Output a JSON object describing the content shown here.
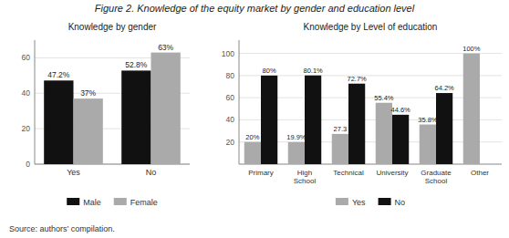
{
  "title": "Figure 2.  Knowledge of the equity market by gender and education level",
  "annotations": [
    "Source: authors’ compilation."
  ],
  "chart_data": [
    {
      "type": "bar",
      "title": "Knowledge by gender",
      "categories": [
        "Yes",
        "No"
      ],
      "series": [
        {
          "name": "Male",
          "color": "#111111",
          "values": [
            47.2,
            52.8
          ],
          "value_labels": [
            "47.2%",
            "52.8%"
          ]
        },
        {
          "name": "Female",
          "color": "#aaaaaa",
          "values": [
            37.0,
            63.0
          ],
          "value_labels": [
            "37%",
            "63%"
          ]
        }
      ],
      "ylim": [
        0,
        70
      ],
      "yticks": [
        0,
        20,
        40,
        60
      ],
      "grid": true,
      "legend": "bottom",
      "data_labels": true
    },
    {
      "type": "bar",
      "title": "Knowledge by Level of education",
      "categories": [
        "Primary",
        "High School",
        "Technical",
        "University",
        "Graduate School",
        "Other"
      ],
      "series": [
        {
          "name": "Yes",
          "color": "#aaaaaa",
          "values": [
            20.0,
            19.9,
            27.3,
            55.4,
            35.8,
            100.0
          ],
          "value_labels": [
            "20%",
            "19.9%",
            "27.3",
            "55.4%",
            "35.8%",
            "100%"
          ]
        },
        {
          "name": "No",
          "color": "#111111",
          "values": [
            80.0,
            80.1,
            72.7,
            44.6,
            64.2,
            0.0
          ],
          "value_labels": [
            "80%",
            "80.1%",
            "72.7%",
            "44.6%",
            "64.2%",
            null
          ]
        }
      ],
      "ylim": [
        0,
        112
      ],
      "yticks": [
        20,
        40,
        60,
        80,
        100
      ],
      "grid": true,
      "legend": "bottom",
      "data_labels": true
    }
  ]
}
